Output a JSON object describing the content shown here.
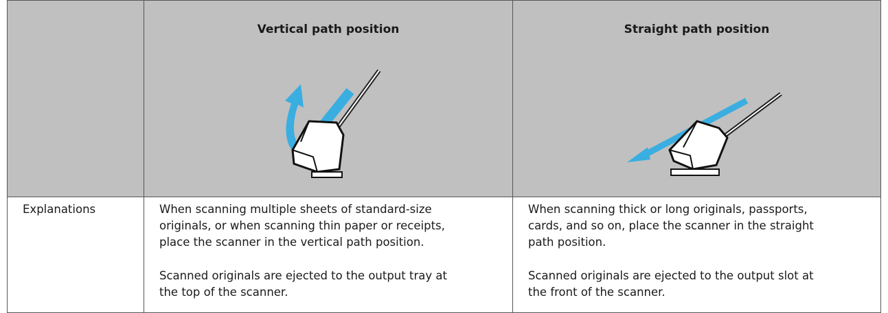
{
  "table": {
    "headers": [
      "Vertical path position",
      "Straight path position"
    ],
    "rows": [
      {
        "label": "Explanations",
        "cells": [
          [
            [
              "When scanning multiple sheets of standard-size",
              "originals, or when scanning thin paper or receipts,",
              "place the scanner in the vertical path position."
            ],
            [
              "Scanned originals are ejected to the output tray at",
              "the top of the scanner."
            ]
          ],
          [
            [
              "When scanning thick or long originals, passports,",
              "cards, and so on, place the scanner in the straight",
              "path position."
            ],
            [
              "Scanned originals are ejected to the output slot at",
              "the front of the scanner."
            ]
          ]
        ]
      }
    ]
  }
}
